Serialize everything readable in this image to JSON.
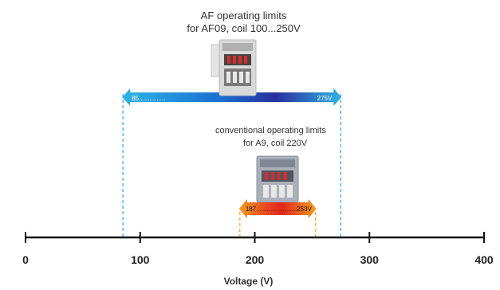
{
  "af_title": {
    "line1": "AF operating limits",
    "line2": "for  AF09, coil 100...250V"
  },
  "af_range": {
    "start_label": "85...............",
    "end_label": "275V",
    "min_v": 85,
    "max_v": 275
  },
  "conv_title": {
    "line1": "conventional operating limits",
    "line2": "for A9, coil 220V"
  },
  "conv_range": {
    "label": "187.......................253V",
    "min_v": 187,
    "max_v": 253
  },
  "axis": {
    "label": "Voltage (V)",
    "min": 0,
    "max": 400,
    "ticks": [
      0,
      100,
      200,
      300,
      400
    ],
    "tick_labels": [
      "0",
      "100",
      "200",
      "300",
      "400"
    ]
  },
  "colors": {
    "af_arrow_start": "#2fb3e6",
    "af_arrow_mid": "#1a6fd0",
    "af_arrow_end": "#2a2f9e",
    "af_dashed": "#2aa6e6",
    "conv_arrow_outer": "#f39c1f",
    "conv_arrow_inner": "#e2261c",
    "conv_dashed": "#f5a623",
    "axis": "#111111"
  },
  "icons": {
    "af_device": "af09-contactor-icon",
    "conv_device": "a9-contactor-icon"
  }
}
